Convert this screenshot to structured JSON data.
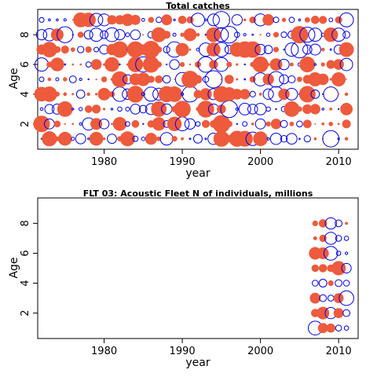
{
  "colors": {
    "positive": "#ee5a3c",
    "negative": "#0000ee",
    "axis": "#000000"
  },
  "chart_data": [
    {
      "type": "scatter",
      "title": "Total catches",
      "xlabel": "year",
      "ylabel": "Age",
      "xlim": [
        1971.5,
        2012.5
      ],
      "ylim": [
        0.3,
        9.7
      ],
      "xticks": [
        1980,
        1990,
        2000,
        2010
      ],
      "yticks": [
        2,
        4,
        6,
        8
      ],
      "grid": false,
      "years": [
        1972,
        2011
      ],
      "ages": [
        1,
        9
      ],
      "size_range": [
        0,
        1
      ],
      "note": "bubble plot of standardized residuals; filled = positive, open = negative"
    },
    {
      "type": "scatter",
      "title": "FLT 03: Acoustic Fleet  N of individuals, millions",
      "xlabel": "year",
      "ylabel": "Age",
      "xlim": [
        1971.5,
        2012.5
      ],
      "ylim": [
        0.3,
        9.7
      ],
      "xticks": [
        1980,
        1990,
        2000,
        2010
      ],
      "yticks": [
        2,
        4,
        6,
        8
      ],
      "grid": false,
      "years": [
        2007,
        2011
      ],
      "ages": [
        1,
        8
      ],
      "size_range": [
        0,
        1
      ],
      "points": [
        {
          "x": 2007,
          "y": 1,
          "size": 0.8,
          "sign": -1
        },
        {
          "x": 2008,
          "y": 1,
          "size": 0.55,
          "sign": 1
        },
        {
          "x": 2009,
          "y": 1,
          "size": 0.5,
          "sign": 1
        },
        {
          "x": 2010,
          "y": 1,
          "size": 0.35,
          "sign": -1
        },
        {
          "x": 2011,
          "y": 1,
          "size": 0.25,
          "sign": -1
        },
        {
          "x": 2007,
          "y": 2,
          "size": 0.45,
          "sign": 1
        },
        {
          "x": 2008,
          "y": 2,
          "size": 0.7,
          "sign": 1
        },
        {
          "x": 2009,
          "y": 2,
          "size": 0.65,
          "sign": -1
        },
        {
          "x": 2010,
          "y": 2,
          "size": 0.55,
          "sign": 1
        },
        {
          "x": 2011,
          "y": 2,
          "size": 0.4,
          "sign": -1
        },
        {
          "x": 2007,
          "y": 3,
          "size": 0.6,
          "sign": 1
        },
        {
          "x": 2008,
          "y": 3,
          "size": 0.4,
          "sign": -1
        },
        {
          "x": 2009,
          "y": 3,
          "size": 0.35,
          "sign": -1
        },
        {
          "x": 2010,
          "y": 3,
          "size": 0.55,
          "sign": 1
        },
        {
          "x": 2011,
          "y": 3,
          "size": 0.85,
          "sign": -1
        },
        {
          "x": 2007,
          "y": 4,
          "size": 0.35,
          "sign": -1
        },
        {
          "x": 2008,
          "y": 4,
          "size": 0.45,
          "sign": -1
        },
        {
          "x": 2009,
          "y": 4,
          "size": 0.3,
          "sign": 1
        },
        {
          "x": 2010,
          "y": 4,
          "size": 0.4,
          "sign": -1
        },
        {
          "x": 2011,
          "y": 4,
          "size": 0.35,
          "sign": -1
        },
        {
          "x": 2007,
          "y": 5,
          "size": 0.4,
          "sign": 1
        },
        {
          "x": 2008,
          "y": 5,
          "size": 0.45,
          "sign": 1
        },
        {
          "x": 2009,
          "y": 5,
          "size": 0.4,
          "sign": 1
        },
        {
          "x": 2010,
          "y": 5,
          "size": 0.8,
          "sign": 1
        },
        {
          "x": 2011,
          "y": 5,
          "size": 0.55,
          "sign": -1
        },
        {
          "x": 2007,
          "y": 6,
          "size": 0.7,
          "sign": 1
        },
        {
          "x": 2008,
          "y": 6,
          "size": 0.65,
          "sign": 1
        },
        {
          "x": 2009,
          "y": 6,
          "size": 0.8,
          "sign": -1
        },
        {
          "x": 2010,
          "y": 6,
          "size": 0.25,
          "sign": -1
        },
        {
          "x": 2011,
          "y": 6,
          "size": 0.15,
          "sign": -1
        },
        {
          "x": 2007,
          "y": 7,
          "size": 0.2,
          "sign": 1
        },
        {
          "x": 2008,
          "y": 7,
          "size": 0.4,
          "sign": 1
        },
        {
          "x": 2009,
          "y": 7,
          "size": 0.7,
          "sign": -1
        },
        {
          "x": 2010,
          "y": 7,
          "size": 0.35,
          "sign": -1
        },
        {
          "x": 2011,
          "y": 7,
          "size": 0.25,
          "sign": -1
        },
        {
          "x": 2007,
          "y": 8,
          "size": 0.3,
          "sign": 1
        },
        {
          "x": 2008,
          "y": 8,
          "size": 0.45,
          "sign": 1
        },
        {
          "x": 2009,
          "y": 8,
          "size": 0.65,
          "sign": -1
        },
        {
          "x": 2010,
          "y": 8,
          "size": 0.4,
          "sign": -1
        },
        {
          "x": 2011,
          "y": 8,
          "size": 0.15,
          "sign": 1
        }
      ]
    }
  ]
}
